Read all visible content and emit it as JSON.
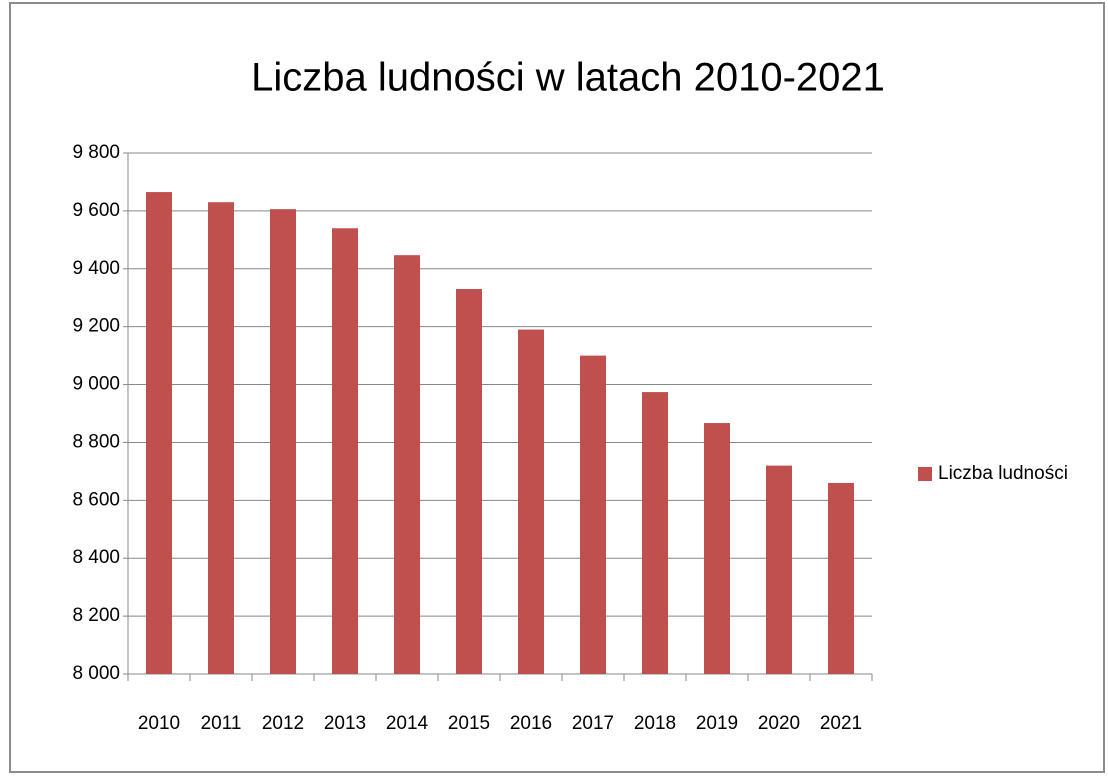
{
  "chart_data": {
    "type": "bar",
    "title": "Liczba ludności w latach 2010-2021",
    "categories": [
      "2010",
      "2011",
      "2012",
      "2013",
      "2014",
      "2015",
      "2016",
      "2017",
      "2018",
      "2019",
      "2020",
      "2021"
    ],
    "series": [
      {
        "name": "Liczba ludności",
        "color": "#c0504d",
        "values": [
          9665,
          9630,
          9606,
          9540,
          9447,
          9330,
          9190,
          9100,
          8974,
          8867,
          8720,
          8660
        ]
      }
    ],
    "ylim": [
      8000,
      9800
    ],
    "yticks": [
      {
        "value": 8000,
        "label": "8 000"
      },
      {
        "value": 8200,
        "label": "8 200"
      },
      {
        "value": 8400,
        "label": "8 400"
      },
      {
        "value": 8600,
        "label": "8 600"
      },
      {
        "value": 8800,
        "label": "8 800"
      },
      {
        "value": 9000,
        "label": "9 000"
      },
      {
        "value": 9200,
        "label": "9 200"
      },
      {
        "value": 9400,
        "label": "9 400"
      },
      {
        "value": 9600,
        "label": "9 600"
      },
      {
        "value": 9800,
        "label": "9 800"
      }
    ],
    "grid": true,
    "legend": "right"
  }
}
